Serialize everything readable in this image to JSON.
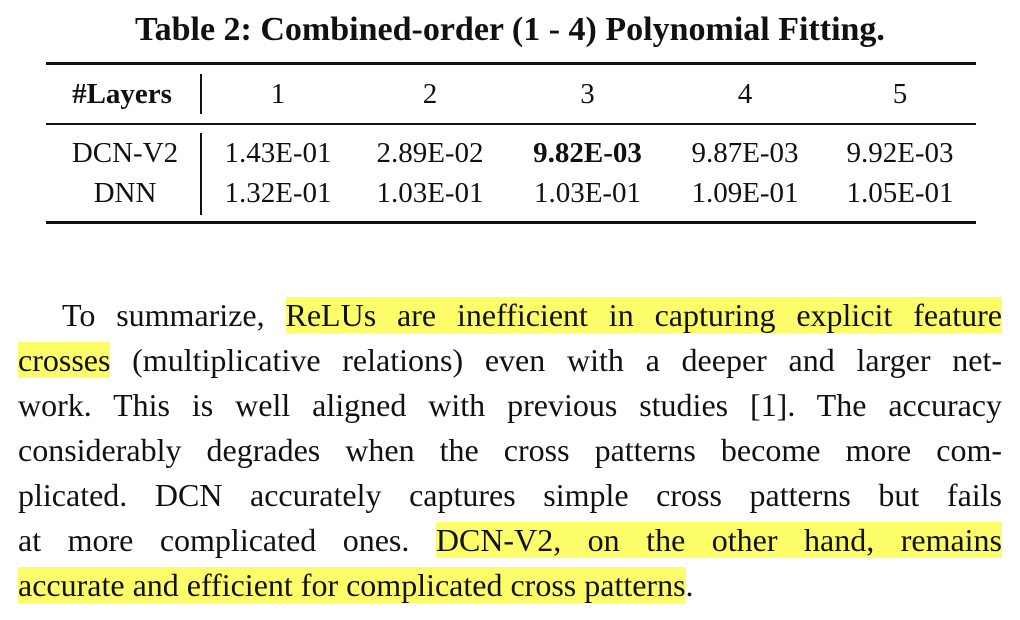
{
  "caption": "Table 2: Combined-order (1 - 4) Polynomial Fitting.",
  "table": {
    "header": [
      "#Layers",
      "1",
      "2",
      "3",
      "4",
      "5"
    ],
    "rows": [
      {
        "label": "DCN-V2",
        "values": [
          "1.43E-01",
          "2.89E-02",
          "9.82E-03",
          "9.87E-03",
          "9.92E-03"
        ]
      },
      {
        "label": "DNN",
        "values": [
          "1.32E-01",
          "1.03E-01",
          "1.03E-01",
          "1.09E-01",
          "1.05E-01"
        ]
      }
    ]
  },
  "paragraph": {
    "l1a": "To summarize, ",
    "l1b": "ReLUs are inefficient in capturing explicit feature",
    "l2a": "crosses",
    "l2b": " (multiplicative relations) even with a deeper and larger net-",
    "l3": "work. This is well aligned with previous studies [1]. The accuracy",
    "l4": "considerably degrades when the cross patterns become more com-",
    "l5": "plicated. DCN accurately captures simple cross patterns but fails",
    "l6a": "at more complicated ones. ",
    "l6b": "DCN-V2, on the other hand, remains",
    "l7a": "accurate and efficient for complicated cross patterns",
    "l7b": "."
  },
  "colors": {
    "highlight": "#fdfd6a",
    "text": "#111111"
  }
}
